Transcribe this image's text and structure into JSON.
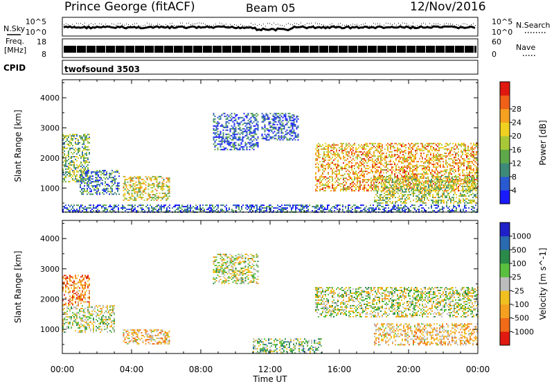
{
  "header": {
    "station": "Prince George (fitACF)",
    "beam": "Beam 05",
    "date": "12/Nov/2016"
  },
  "strip_panels": {
    "nsky_label": "N.Sky",
    "nsky_ticks": [
      "10^5",
      "10^0"
    ],
    "nsearch_label": "N.Search",
    "nsearch_ticks": [
      "10^5",
      "10^0"
    ],
    "freq_label": "Freq.",
    "freq_unit": "[MHz]",
    "freq_ticks": [
      "18",
      "8"
    ],
    "nave_label": "Nave",
    "nave_ticks": [
      "60",
      "0"
    ],
    "cpid_label": "CPID",
    "cpid_value": "twofsound 3503"
  },
  "chart_data": [
    {
      "type": "heatmap",
      "title": "",
      "xlabel": "Time UT",
      "ylabel": "Slant Range [km]",
      "x_ticks": [
        "00:00",
        "04:00",
        "08:00",
        "12:00",
        "16:00",
        "20:00",
        "00:00"
      ],
      "y_ticks": [
        "1000",
        "2000",
        "3000",
        "4000"
      ],
      "ylim": [
        200,
        4600
      ],
      "colorbar": {
        "label": "Power [dB]",
        "ticks": [
          "4",
          "8",
          "12",
          "16",
          "20",
          "24",
          "28"
        ],
        "colors": [
          "#1a1aff",
          "#2a5ad0",
          "#3e8a78",
          "#5fa84a",
          "#a8c837",
          "#f0d020",
          "#f5a020",
          "#f06018",
          "#e01810"
        ],
        "range": [
          0,
          32
        ]
      },
      "echo_regions_hours_km": [
        {
          "t": [
            0.0,
            1.6
          ],
          "r": [
            1200,
            2800
          ],
          "v": 14
        },
        {
          "t": [
            1.0,
            3.3
          ],
          "r": [
            800,
            1600
          ],
          "v": 8
        },
        {
          "t": [
            3.5,
            6.2
          ],
          "r": [
            600,
            1400
          ],
          "v": 18
        },
        {
          "t": [
            8.7,
            11.3
          ],
          "r": [
            2300,
            3500
          ],
          "v": 6
        },
        {
          "t": [
            11.5,
            13.6
          ],
          "r": [
            2600,
            3500
          ],
          "v": 6
        },
        {
          "t": [
            14.6,
            24.0
          ],
          "r": [
            900,
            2500
          ],
          "v": 22
        },
        {
          "t": [
            18.0,
            24.0
          ],
          "r": [
            500,
            1400
          ],
          "v": 16
        },
        {
          "t": [
            0.0,
            24.0
          ],
          "r": [
            200,
            450
          ],
          "v": 6
        }
      ]
    },
    {
      "type": "heatmap",
      "title": "",
      "xlabel": "Time UT",
      "ylabel": "Slant Range [km]",
      "x_ticks": [
        "00:00",
        "04:00",
        "08:00",
        "12:00",
        "16:00",
        "20:00",
        "00:00"
      ],
      "y_ticks": [
        "1000",
        "2000",
        "3000",
        "4000"
      ],
      "ylim": [
        200,
        4600
      ],
      "colorbar": {
        "label": "Velocity [m s^-1]",
        "ticks": [
          "1000",
          "500",
          "100",
          "25",
          "-25",
          "-100",
          "-500",
          "-1000"
        ],
        "colors": [
          "#2020c8",
          "#2a6ab0",
          "#2a8a4a",
          "#5ac040",
          "#bcbcbc",
          "#f0c020",
          "#f5a020",
          "#f06a18",
          "#e01a10"
        ],
        "range": [
          -1000,
          1000
        ]
      },
      "echo_regions_hours_km": [
        {
          "t": [
            0.0,
            1.6
          ],
          "r": [
            1800,
            2800
          ],
          "v": -500
        },
        {
          "t": [
            0.0,
            3.0
          ],
          "r": [
            900,
            1800
          ],
          "v": 0
        },
        {
          "t": [
            3.5,
            6.2
          ],
          "r": [
            500,
            1000
          ],
          "v": -300
        },
        {
          "t": [
            8.7,
            11.3
          ],
          "r": [
            2500,
            3500
          ],
          "v": 0
        },
        {
          "t": [
            11.0,
            15.0
          ],
          "r": [
            200,
            700
          ],
          "v": 200
        },
        {
          "t": [
            14.6,
            24.0
          ],
          "r": [
            1400,
            2400
          ],
          "v": 0
        },
        {
          "t": [
            18.0,
            24.0
          ],
          "r": [
            500,
            1200
          ],
          "v": -300
        }
      ]
    }
  ]
}
